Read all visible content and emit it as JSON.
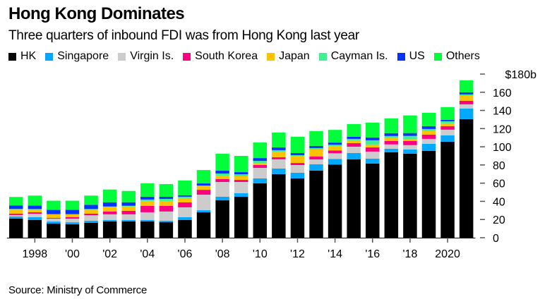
{
  "chart_data": {
    "type": "bar",
    "stacked": true,
    "title": "Hong Kong Dominates",
    "subtitle": "Three quarters of inbound FDI was from Hong Kong last year",
    "source": "Source: Ministry of Commerce",
    "xlabel": "",
    "ylabel": "",
    "ylim": [
      0,
      180
    ],
    "y_ticks": [
      0,
      20,
      40,
      60,
      80,
      100,
      120,
      140,
      160,
      180
    ],
    "y_tick_labels": [
      "0",
      "20",
      "40",
      "60",
      "80",
      "100",
      "120",
      "140",
      "160",
      "$180b"
    ],
    "y_axis_side": "right",
    "grid": false,
    "legend_position": "top-left",
    "categories": [
      "1997",
      "1998",
      "1999",
      "2000",
      "2001",
      "2002",
      "2003",
      "2004",
      "2005",
      "2006",
      "2007",
      "2008",
      "2009",
      "2010",
      "2011",
      "2012",
      "2013",
      "2014",
      "2015",
      "2016",
      "2017",
      "2018",
      "2019",
      "2020",
      "2021"
    ],
    "x_tick_labels": [
      {
        "category": "1998",
        "label": "1998"
      },
      {
        "category": "2000",
        "label": "'00"
      },
      {
        "category": "2002",
        "label": "'02"
      },
      {
        "category": "2004",
        "label": "'04"
      },
      {
        "category": "2006",
        "label": "'06"
      },
      {
        "category": "2008",
        "label": "'08"
      },
      {
        "category": "2010",
        "label": "'10"
      },
      {
        "category": "2012",
        "label": "'12"
      },
      {
        "category": "2014",
        "label": "'14"
      },
      {
        "category": "2016",
        "label": "'16"
      },
      {
        "category": "2018",
        "label": "'18"
      },
      {
        "category": "2020",
        "label": "2020"
      }
    ],
    "series": [
      {
        "name": "HK",
        "color": "#000000",
        "values": [
          21.0,
          19.4,
          15.5,
          14.7,
          16.3,
          17.9,
          17.9,
          17.9,
          17.1,
          19.4,
          27.9,
          41.1,
          45.0,
          59.8,
          69.9,
          65.2,
          73.7,
          80.5,
          86.1,
          81.5,
          94.0,
          92.4,
          95.5,
          105.6,
          130.4
        ]
      },
      {
        "name": "Singapore",
        "color": "#00a9ff",
        "values": [
          2.3,
          3.1,
          2.3,
          2.3,
          2.3,
          1.6,
          1.6,
          1.6,
          1.6,
          3.1,
          2.3,
          3.9,
          3.9,
          5.4,
          6.2,
          6.2,
          7.0,
          6.2,
          7.0,
          5.4,
          3.9,
          4.7,
          7.8,
          7.0,
          11.6
        ]
      },
      {
        "name": "Virgin Is.",
        "color": "#cccccc",
        "values": [
          1.6,
          3.9,
          3.1,
          3.9,
          6.2,
          6.2,
          6.2,
          8.5,
          10.1,
          10.9,
          17.1,
          16.3,
          12.4,
          11.6,
          10.1,
          8.5,
          5.4,
          6.2,
          7.0,
          7.8,
          4.7,
          4.7,
          5.4,
          6.2,
          4.7
        ]
      },
      {
        "name": "South Korea",
        "color": "#ff0080",
        "values": [
          1.6,
          1.6,
          0.8,
          1.6,
          1.6,
          3.1,
          3.9,
          7.0,
          6.2,
          5.4,
          5.4,
          3.1,
          2.3,
          3.1,
          2.3,
          2.3,
          3.1,
          3.1,
          3.9,
          4.7,
          3.9,
          4.7,
          4.7,
          3.9,
          3.9
        ]
      },
      {
        "name": "Japan",
        "color": "#ffc200",
        "values": [
          4.7,
          3.1,
          3.9,
          3.1,
          4.7,
          4.7,
          4.7,
          5.4,
          5.4,
          4.7,
          3.9,
          3.9,
          3.9,
          2.3,
          6.2,
          7.8,
          7.8,
          4.7,
          3.1,
          3.1,
          3.1,
          1.6,
          3.9,
          3.1,
          5.4
        ]
      },
      {
        "name": "Cayman Is.",
        "color": "#40f090",
        "values": [
          0.4,
          0.4,
          0.3,
          0.3,
          0.4,
          0.8,
          0.8,
          1.6,
          2.3,
          1.6,
          0.8,
          2.3,
          2.3,
          2.3,
          1.6,
          0.8,
          1.6,
          1.6,
          1.6,
          4.7,
          2.3,
          3.9,
          2.3,
          2.3,
          1.6
        ]
      },
      {
        "name": "US",
        "color": "#0033ff",
        "values": [
          3.9,
          3.9,
          4.7,
          4.7,
          4.7,
          4.7,
          3.9,
          3.1,
          2.3,
          1.6,
          2.3,
          3.1,
          2.3,
          3.1,
          3.1,
          2.3,
          2.3,
          2.3,
          2.3,
          3.1,
          3.1,
          3.1,
          3.1,
          1.6,
          2.3
        ]
      },
      {
        "name": "Others",
        "color": "#00ff3a",
        "values": [
          9.3,
          10.9,
          10.1,
          10.1,
          10.1,
          14.0,
          12.4,
          14.7,
          14.0,
          16.3,
          14.7,
          18.6,
          17.9,
          17.1,
          16.3,
          17.9,
          16.3,
          14.0,
          14.0,
          16.3,
          16.3,
          19.4,
          14.7,
          14.0,
          13.2
        ]
      }
    ]
  }
}
